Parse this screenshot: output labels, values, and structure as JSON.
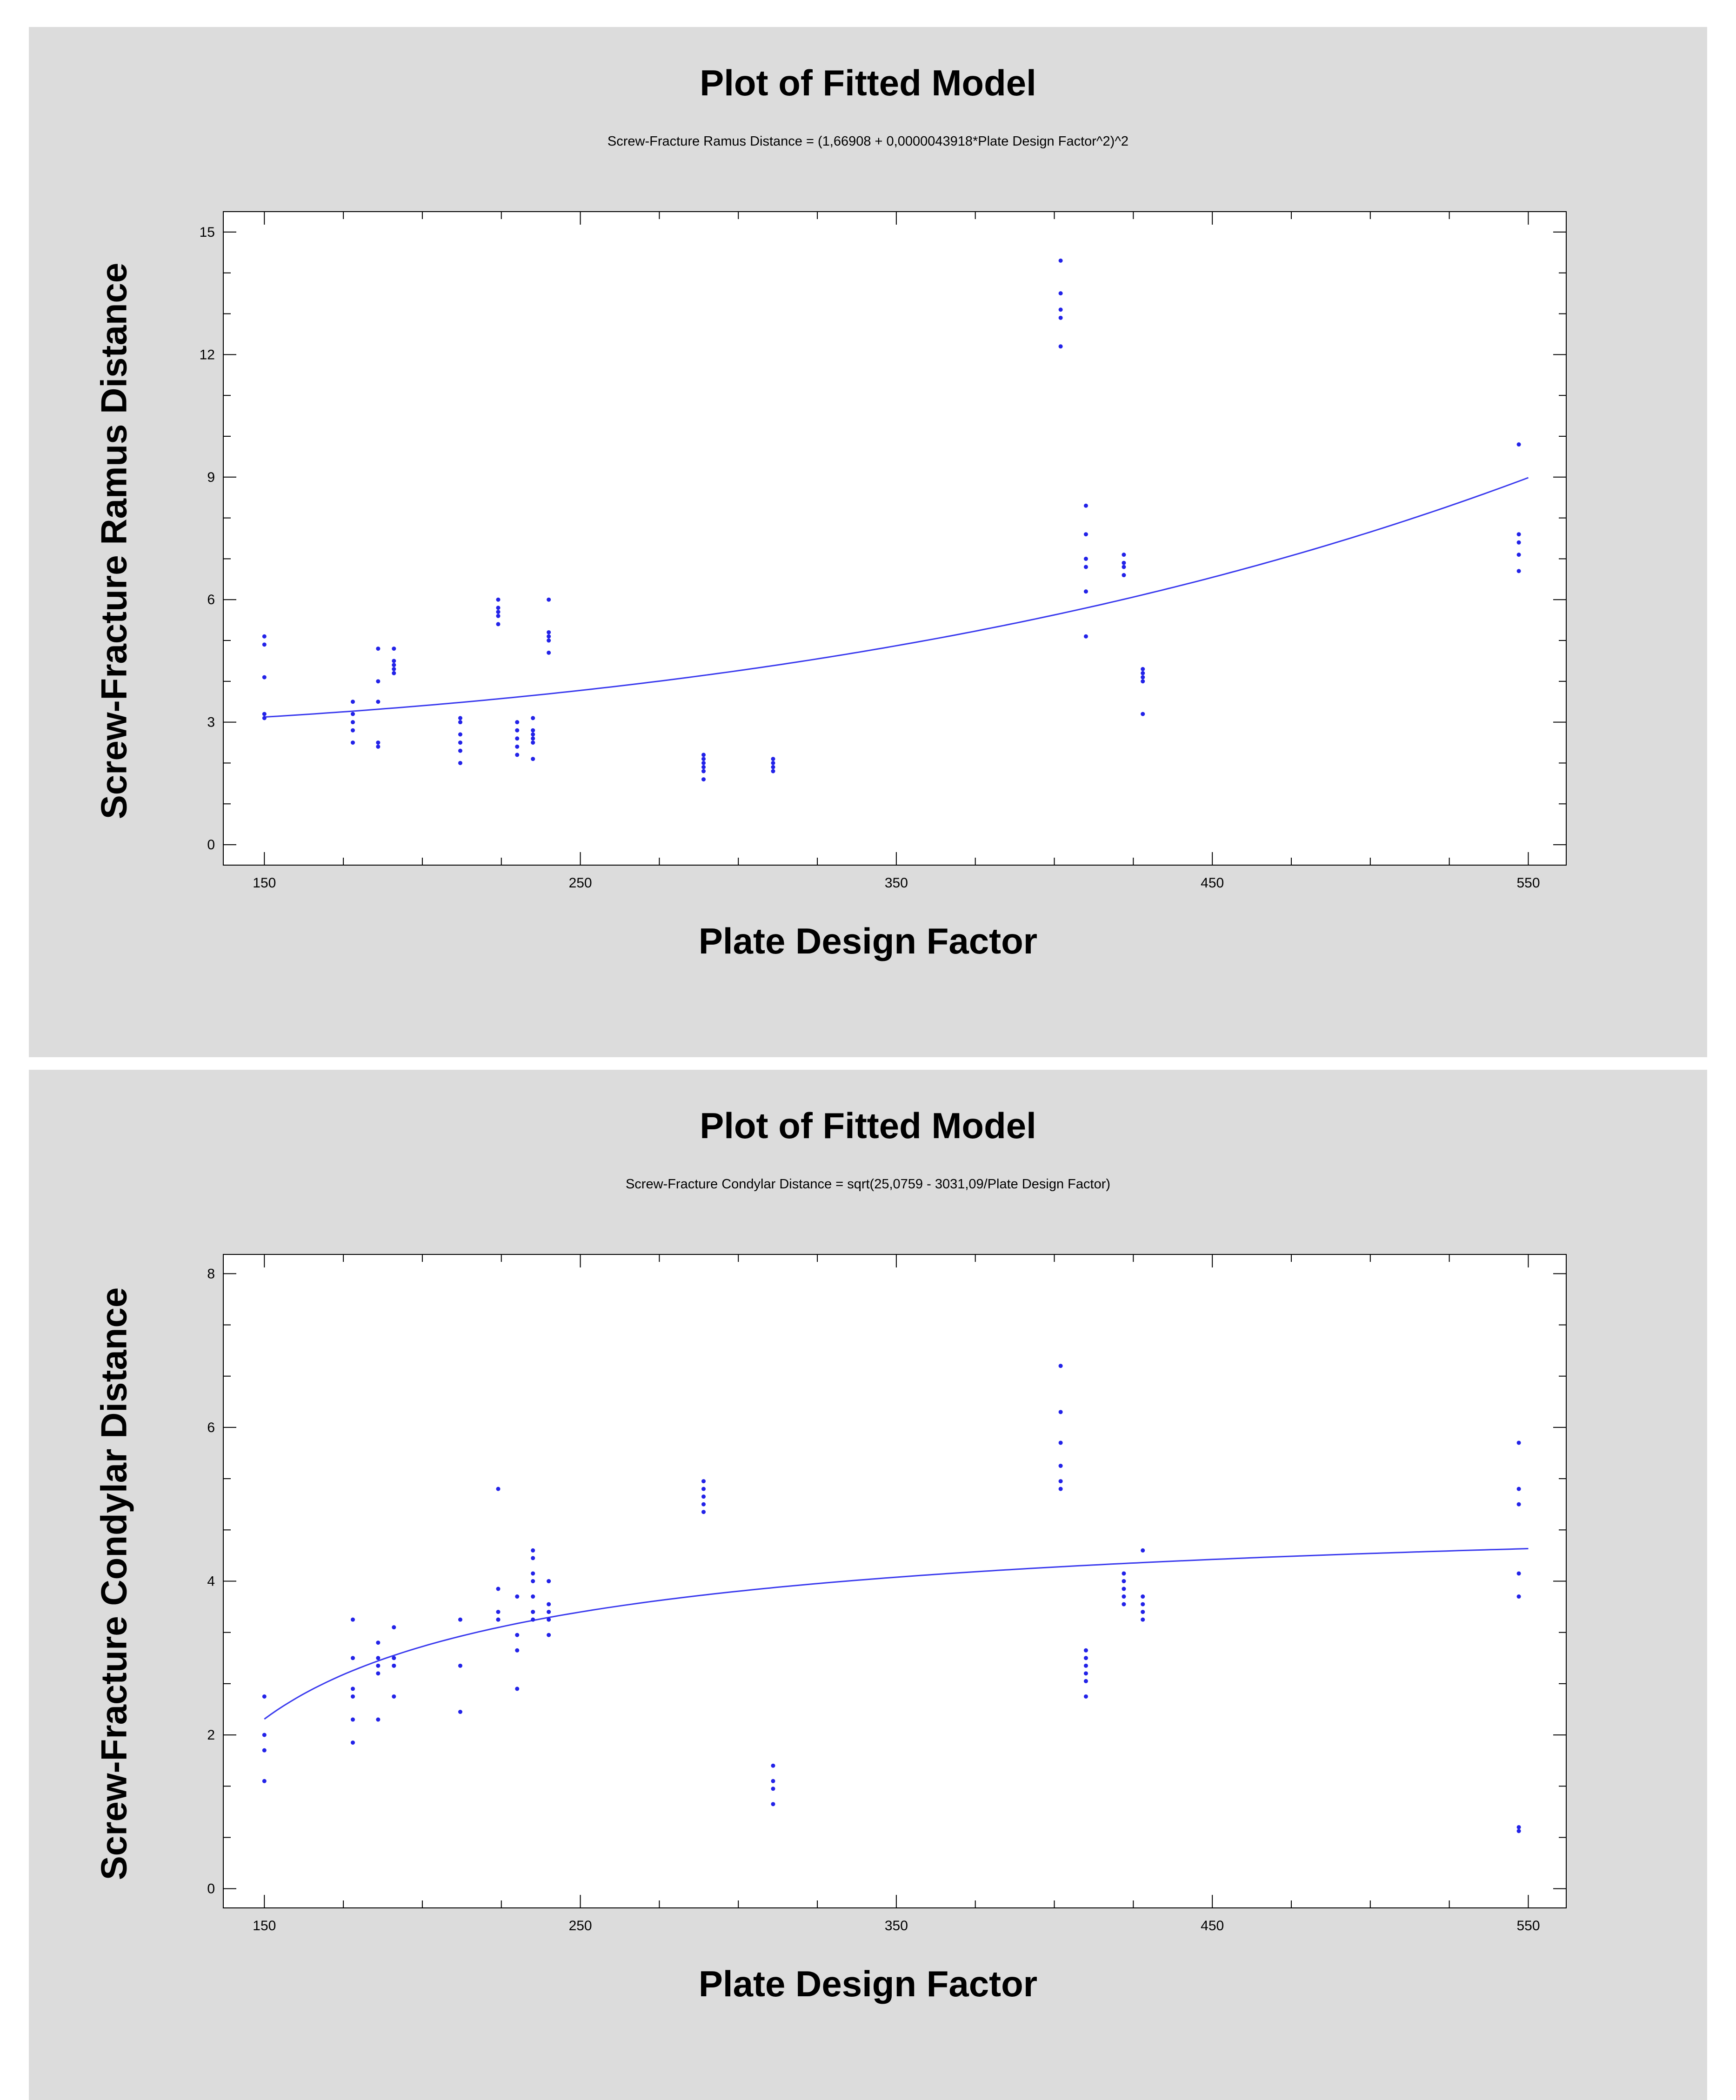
{
  "chart_data": [
    {
      "type": "scatter",
      "title": "Plot of Fitted Model",
      "subtitle": "Screw-Fracture Ramus Distance = (1,66908 + 0,0000043918*Plate Design Factor^2)^2",
      "xlabel": "Plate Design Factor",
      "ylabel": "Screw-Fracture Ramus Distance",
      "xlim": [
        137,
        562
      ],
      "ylim": [
        -0.5,
        15.5
      ],
      "xticks": [
        150,
        250,
        350,
        450,
        550
      ],
      "yticks": [
        0,
        3,
        6,
        9,
        12,
        15
      ],
      "grid": false,
      "fit": {
        "model": "squared_x2",
        "a": 1.66908,
        "b": 4.3918e-06,
        "x": [
          150,
          550
        ]
      },
      "series": [
        {
          "x": [
            150,
            150,
            150,
            150,
            150,
            178,
            178,
            178,
            178,
            178,
            186,
            186,
            186,
            186,
            186,
            191,
            191,
            191,
            191,
            191,
            212,
            212,
            212,
            212,
            212,
            212,
            224,
            224,
            224,
            224,
            224,
            230,
            230,
            230,
            230,
            230,
            235,
            235,
            235,
            235,
            235,
            235,
            240,
            240,
            240,
            240,
            240,
            289,
            289,
            289,
            289,
            289,
            289,
            311,
            311,
            311,
            311,
            402,
            402,
            402,
            402,
            402,
            410,
            410,
            410,
            410,
            410,
            410,
            422,
            422,
            422,
            422,
            428,
            428,
            428,
            428,
            428,
            547,
            547,
            547,
            547,
            547
          ],
          "y": [
            5.1,
            4.9,
            4.1,
            3.2,
            3.1,
            3.5,
            3.2,
            3.0,
            2.8,
            2.5,
            4.8,
            4.0,
            3.5,
            2.5,
            2.4,
            4.8,
            4.5,
            4.4,
            4.3,
            4.2,
            3.1,
            3.0,
            2.7,
            2.5,
            2.3,
            2.0,
            6.0,
            5.8,
            5.7,
            5.6,
            5.4,
            3.0,
            2.8,
            2.6,
            2.4,
            2.2,
            3.1,
            2.8,
            2.7,
            2.6,
            2.5,
            2.1,
            6.0,
            5.2,
            5.1,
            5.0,
            4.7,
            2.2,
            2.1,
            2.0,
            1.9,
            1.8,
            1.6,
            2.1,
            2.0,
            1.9,
            1.8,
            14.3,
            13.5,
            13.1,
            12.9,
            12.2,
            8.3,
            7.6,
            7.0,
            6.8,
            6.2,
            5.1,
            7.1,
            6.9,
            6.8,
            6.6,
            4.3,
            4.2,
            4.1,
            4.0,
            3.2,
            9.8,
            7.6,
            7.4,
            7.1,
            6.7
          ]
        }
      ]
    },
    {
      "type": "scatter",
      "title": "Plot of Fitted Model",
      "subtitle": "Screw-Fracture Condylar Distance = sqrt(25,0759 - 3031,09/Plate Design Factor)",
      "xlabel": "Plate Design Factor",
      "ylabel": "Screw-Fracture Condylar Distance",
      "xlim": [
        137,
        562
      ],
      "ylim": [
        -0.25,
        8.25
      ],
      "xticks": [
        150,
        250,
        350,
        450,
        550
      ],
      "yticks": [
        0,
        2,
        4,
        6,
        8
      ],
      "grid": false,
      "fit": {
        "model": "sqrt_reciprocal",
        "a": 25.0759,
        "b": 3031.09,
        "x": [
          150,
          550
        ]
      },
      "series": [
        {
          "x": [
            150,
            150,
            150,
            150,
            178,
            178,
            178,
            178,
            178,
            178,
            186,
            186,
            186,
            186,
            186,
            191,
            191,
            191,
            191,
            191,
            212,
            212,
            212,
            224,
            224,
            224,
            224,
            224,
            230,
            230,
            230,
            230,
            235,
            235,
            235,
            235,
            235,
            235,
            235,
            240,
            240,
            240,
            240,
            240,
            240,
            289,
            289,
            289,
            289,
            289,
            311,
            311,
            311,
            311,
            402,
            402,
            402,
            402,
            402,
            402,
            410,
            410,
            410,
            410,
            410,
            410,
            422,
            422,
            422,
            422,
            422,
            428,
            428,
            428,
            428,
            428,
            547,
            547,
            547,
            547,
            547,
            547,
            547
          ],
          "y": [
            2.5,
            2.0,
            1.8,
            1.4,
            3.5,
            3.0,
            2.6,
            2.5,
            2.2,
            1.9,
            3.2,
            3.0,
            2.9,
            2.8,
            2.2,
            3.4,
            3.0,
            2.9,
            2.9,
            2.5,
            3.5,
            2.9,
            2.3,
            5.2,
            3.9,
            3.6,
            3.5,
            3.5,
            3.8,
            3.3,
            3.1,
            2.6,
            4.4,
            4.3,
            4.1,
            4.0,
            3.8,
            3.6,
            3.5,
            4.0,
            4.0,
            3.7,
            3.6,
            3.5,
            3.3,
            5.3,
            5.2,
            5.1,
            5.0,
            4.9,
            1.6,
            1.4,
            1.3,
            1.1,
            6.8,
            6.2,
            5.8,
            5.5,
            5.3,
            5.2,
            3.1,
            3.0,
            2.9,
            2.8,
            2.7,
            2.5,
            4.1,
            4.0,
            3.9,
            3.8,
            3.7,
            4.4,
            3.8,
            3.7,
            3.6,
            3.5,
            5.8,
            5.2,
            5.0,
            4.1,
            3.8,
            0.8,
            0.75
          ]
        }
      ]
    }
  ],
  "colors": {
    "points": "#2222e8",
    "fit_line": "#3a3aee",
    "panel_bg": "#dcdcdc",
    "plot_bg": "#ffffff"
  }
}
